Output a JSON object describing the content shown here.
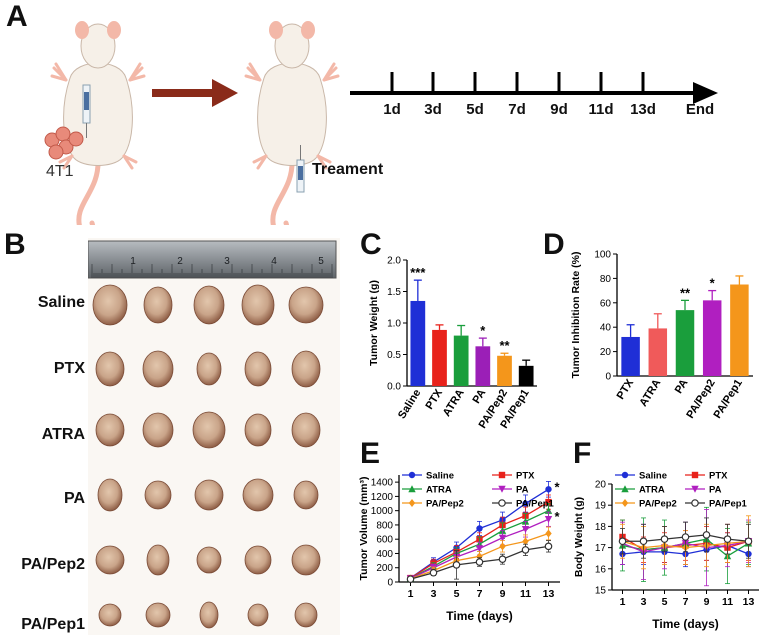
{
  "panels": {
    "a": "A",
    "b": "B",
    "c": "C",
    "d": "D",
    "e": "E",
    "f": "F"
  },
  "panel_a": {
    "cell_label": "4T1",
    "treatment_label": "Treament",
    "timeline_days": [
      "1d",
      "3d",
      "5d",
      "7d",
      "9d",
      "11d",
      "13d",
      "End"
    ],
    "colors": {
      "arrow": "#8a2b1a",
      "mouse_body": "#f6f0e8",
      "mouse_skin": "#f3b8a8",
      "cells": "#e88a7a"
    }
  },
  "panel_b": {
    "groups": [
      "Saline",
      "PTX",
      "ATRA",
      "PA",
      "PA/Pep2",
      "PA/Pep1"
    ],
    "ruler_numbers": [
      "1",
      "2",
      "3",
      "4",
      "5"
    ],
    "tumors_per_group": [
      5,
      5,
      5,
      5,
      5,
      5
    ],
    "colors": {
      "tumor": "#c9a489",
      "tumor_dark": "#8e5d45",
      "ruler": "#8a8f94"
    }
  },
  "chart_data": [
    {
      "id": "C",
      "type": "bar",
      "title": "",
      "xlabel": "",
      "ylabel": "Tumor Weight (g)",
      "categories": [
        "Saline",
        "PTX",
        "ATRA",
        "PA",
        "PA/Pep2",
        "PA/Pep1"
      ],
      "values": [
        1.35,
        0.89,
        0.8,
        0.63,
        0.48,
        0.32
      ],
      "errors": [
        0.33,
        0.08,
        0.16,
        0.13,
        0.04,
        0.09
      ],
      "colors": [
        "#1f2fd6",
        "#e8221b",
        "#1a9e3c",
        "#9b1fb7",
        "#f4961b",
        "#000000"
      ],
      "significance": [
        "***",
        "",
        "",
        "*",
        "**",
        ""
      ],
      "ylim": [
        0,
        2.0
      ],
      "yticks": [
        "0.0",
        "0.5",
        "1.0",
        "1.5",
        "2.0"
      ]
    },
    {
      "id": "D",
      "type": "bar",
      "title": "",
      "xlabel": "",
      "ylabel": "Tumor Inhibition Rate (%)",
      "categories": [
        "PTX",
        "ATRA",
        "PA",
        "PA/Pep2",
        "PA/Pep1"
      ],
      "values": [
        32,
        39,
        54,
        62,
        75
      ],
      "errors": [
        10,
        12,
        8,
        8,
        7
      ],
      "colors": [
        "#1f2fd6",
        "#f05a5a",
        "#1a9e3c",
        "#b01fc0",
        "#f4961b"
      ],
      "significance": [
        "",
        "",
        "**",
        "*",
        ""
      ],
      "ylim": [
        0,
        100
      ],
      "yticks": [
        "0",
        "20",
        "40",
        "60",
        "80",
        "100"
      ]
    },
    {
      "id": "E",
      "type": "line",
      "title": "",
      "xlabel": "Time (days)",
      "ylabel": "Tumor Volume (mm³)",
      "x": [
        1,
        3,
        5,
        7,
        9,
        11,
        13
      ],
      "xticks": [
        "1",
        "3",
        "5",
        "7",
        "9",
        "11",
        "13"
      ],
      "ylim": [
        0,
        1500
      ],
      "yticks": [
        "0",
        "200",
        "400",
        "600",
        "800",
        "1000",
        "1200",
        "1400"
      ],
      "series": [
        {
          "name": "Saline",
          "color": "#1f2fd6",
          "marker": "circle",
          "values": [
            55,
            280,
            480,
            750,
            870,
            1100,
            1300
          ],
          "errors": [
            15,
            60,
            80,
            100,
            110,
            120,
            110
          ]
        },
        {
          "name": "PTX",
          "color": "#e8221b",
          "marker": "square",
          "values": [
            55,
            260,
            420,
            600,
            800,
            930,
            1120
          ],
          "errors": [
            15,
            60,
            90,
            90,
            110,
            120,
            100
          ]
        },
        {
          "name": "ATRA",
          "color": "#1a9e3c",
          "marker": "triangle",
          "values": [
            50,
            220,
            400,
            530,
            720,
            850,
            1000
          ],
          "errors": [
            15,
            50,
            80,
            100,
            110,
            110,
            100
          ]
        },
        {
          "name": "PA",
          "color": "#b01fc0",
          "marker": "triangle-down",
          "values": [
            50,
            200,
            350,
            470,
            620,
            740,
            880
          ],
          "errors": [
            15,
            50,
            70,
            90,
            100,
            110,
            100
          ]
        },
        {
          "name": "PA/Pep2",
          "color": "#f4961b",
          "marker": "diamond",
          "values": [
            45,
            160,
            300,
            360,
            500,
            570,
            680
          ],
          "errors": [
            15,
            50,
            60,
            70,
            80,
            90,
            90
          ]
        },
        {
          "name": "PA/Pep1",
          "color": "#333333",
          "marker": "open-circle",
          "values": [
            40,
            130,
            240,
            280,
            320,
            450,
            500
          ],
          "errors": [
            15,
            40,
            200,
            60,
            70,
            80,
            80
          ]
        }
      ],
      "significance": [
        {
          "series": "Saline",
          "label": "*"
        },
        {
          "series": "PA",
          "label": "*"
        }
      ]
    },
    {
      "id": "F",
      "type": "line",
      "title": "",
      "xlabel": "Time (days)",
      "ylabel": "Body Weight (g)",
      "x": [
        1,
        3,
        5,
        7,
        9,
        11,
        13
      ],
      "xticks": [
        "1",
        "3",
        "5",
        "7",
        "9",
        "11",
        "13"
      ],
      "ylim": [
        15,
        20
      ],
      "yticks": [
        "15",
        "16",
        "17",
        "18",
        "19",
        "20"
      ],
      "series": [
        {
          "name": "Saline",
          "color": "#1f2fd6",
          "marker": "circle",
          "values": [
            16.7,
            16.8,
            16.8,
            16.7,
            16.9,
            17.1,
            16.7
          ],
          "errors": [
            0.5,
            0.6,
            0.5,
            0.6,
            0.5,
            0.6,
            0.6
          ]
        },
        {
          "name": "PTX",
          "color": "#e8221b",
          "marker": "square",
          "values": [
            17.5,
            16.9,
            17.0,
            17.1,
            17.2,
            17.0,
            17.3
          ],
          "errors": [
            0.8,
            0.6,
            0.7,
            0.7,
            0.8,
            0.7,
            0.9
          ]
        },
        {
          "name": "ATRA",
          "color": "#1a9e3c",
          "marker": "triangle",
          "values": [
            17.1,
            16.9,
            17.0,
            17.2,
            17.4,
            16.6,
            17.2
          ],
          "errors": [
            1.2,
            1.5,
            1.3,
            1.0,
            1.5,
            1.3,
            1.0
          ]
        },
        {
          "name": "PA",
          "color": "#b01fc0",
          "marker": "triangle-down",
          "values": [
            17.2,
            16.8,
            17.0,
            17.2,
            17.0,
            17.1,
            17.3
          ],
          "errors": [
            1.0,
            1.3,
            1.0,
            1.0,
            1.8,
            1.0,
            1.0
          ]
        },
        {
          "name": "PA/Pep2",
          "color": "#f4961b",
          "marker": "diamond",
          "values": [
            17.3,
            17.0,
            17.1,
            17.0,
            17.1,
            17.2,
            17.3
          ],
          "errors": [
            0.8,
            1.0,
            0.9,
            0.8,
            1.0,
            0.9,
            1.2
          ]
        },
        {
          "name": "PA/Pep1",
          "color": "#333333",
          "marker": "open-circle",
          "values": [
            17.3,
            17.3,
            17.4,
            17.5,
            17.6,
            17.4,
            17.3
          ],
          "errors": [
            0.6,
            0.8,
            0.6,
            0.7,
            0.8,
            0.7,
            0.8
          ]
        }
      ]
    }
  ]
}
